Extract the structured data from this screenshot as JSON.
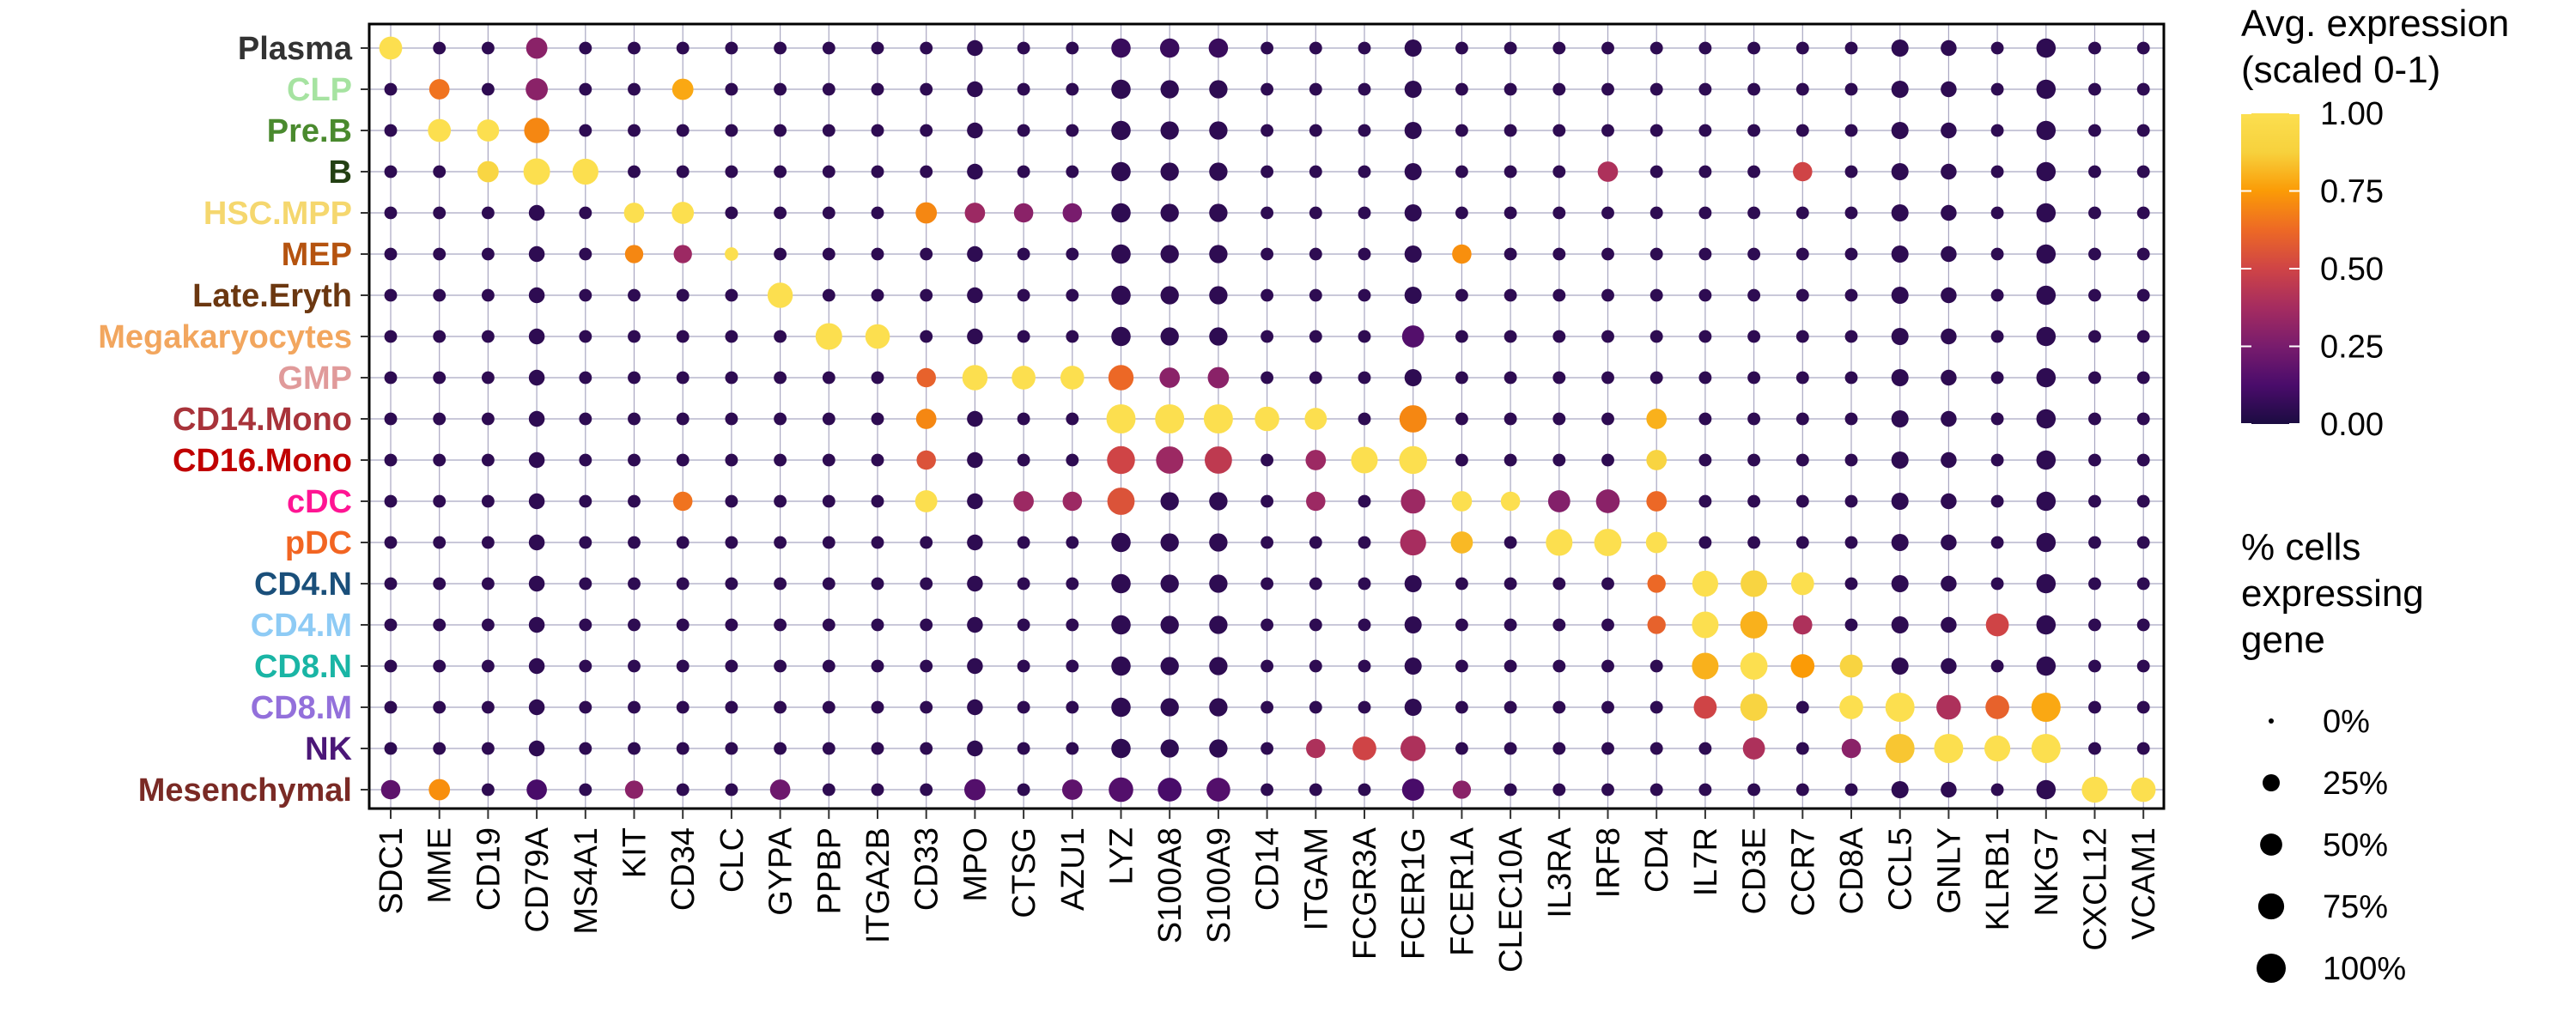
{
  "chart_data": {
    "type": "dot",
    "genes": [
      "SDC1",
      "MME",
      "CD19",
      "CD79A",
      "MS4A1",
      "KIT",
      "CD34",
      "CLC",
      "GYPA",
      "PPBP",
      "ITGA2B",
      "CD33",
      "MPO",
      "CTSG",
      "AZU1",
      "LYZ",
      "S100A8",
      "S100A9",
      "CD14",
      "ITGAM",
      "FCGR3A",
      "FCER1G",
      "FCER1A",
      "CLEC10A",
      "IL3RA",
      "IRF8",
      "CD4",
      "IL7R",
      "CD3E",
      "CCR7",
      "CD8A",
      "CCL5",
      "GNLY",
      "KLRB1",
      "NKG7",
      "CXCL12",
      "VCAM1"
    ],
    "cell_types": [
      {
        "name": "Plasma",
        "color": "#333333"
      },
      {
        "name": "CLP",
        "color": "#a6e3a1"
      },
      {
        "name": "Pre.B",
        "color": "#4a8a2e"
      },
      {
        "name": "B",
        "color": "#234013"
      },
      {
        "name": "HSC.MPP",
        "color": "#f5d76e"
      },
      {
        "name": "MEP",
        "color": "#b5530f"
      },
      {
        "name": "Late.Eryth",
        "color": "#6b3710"
      },
      {
        "name": "Megakaryocytes",
        "color": "#f2a65e"
      },
      {
        "name": "GMP",
        "color": "#e09a9a"
      },
      {
        "name": "CD14.Mono",
        "color": "#a8333a"
      },
      {
        "name": "CD16.Mono",
        "color": "#c00000"
      },
      {
        "name": "cDC",
        "color": "#ff1493"
      },
      {
        "name": "pDC",
        "color": "#f26522"
      },
      {
        "name": "CD4.N",
        "color": "#1a4f7a"
      },
      {
        "name": "CD4.M",
        "color": "#8ecbf5"
      },
      {
        "name": "CD8.N",
        "color": "#1ab5a5"
      },
      {
        "name": "CD8.M",
        "color": "#9370db"
      },
      {
        "name": "NK",
        "color": "#4b1778"
      },
      {
        "name": "Mesenchymal",
        "color": "#7a2a25"
      }
    ],
    "highlights": [
      {
        "cell": "Plasma",
        "gene": "SDC1",
        "expr": 1.0,
        "pct": 55
      },
      {
        "cell": "Plasma",
        "gene": "CD79A",
        "expr": 0.3,
        "pct": 45
      },
      {
        "cell": "Plasma",
        "gene": "LYZ",
        "expr": 0.08,
        "pct": 35
      },
      {
        "cell": "Plasma",
        "gene": "S100A8",
        "expr": 0.08,
        "pct": 35
      },
      {
        "cell": "Plasma",
        "gene": "S100A9",
        "expr": 0.08,
        "pct": 35
      },
      {
        "cell": "CLP",
        "gene": "MME",
        "expr": 0.65,
        "pct": 40
      },
      {
        "cell": "CLP",
        "gene": "CD79A",
        "expr": 0.3,
        "pct": 50
      },
      {
        "cell": "CLP",
        "gene": "CD34",
        "expr": 0.78,
        "pct": 45
      },
      {
        "cell": "Pre.B",
        "gene": "MME",
        "expr": 1.0,
        "pct": 55
      },
      {
        "cell": "Pre.B",
        "gene": "CD19",
        "expr": 1.0,
        "pct": 50
      },
      {
        "cell": "Pre.B",
        "gene": "CD79A",
        "expr": 0.7,
        "pct": 70
      },
      {
        "cell": "B",
        "gene": "CD19",
        "expr": 0.92,
        "pct": 45
      },
      {
        "cell": "B",
        "gene": "CD79A",
        "expr": 1.0,
        "pct": 80
      },
      {
        "cell": "B",
        "gene": "MS4A1",
        "expr": 1.0,
        "pct": 75
      },
      {
        "cell": "B",
        "gene": "IRF8",
        "expr": 0.4,
        "pct": 40
      },
      {
        "cell": "B",
        "gene": "CCR7",
        "expr": 0.5,
        "pct": 35
      },
      {
        "cell": "HSC.MPP",
        "gene": "KIT",
        "expr": 1.0,
        "pct": 40
      },
      {
        "cell": "HSC.MPP",
        "gene": "CD34",
        "expr": 1.0,
        "pct": 50
      },
      {
        "cell": "HSC.MPP",
        "gene": "CD33",
        "expr": 0.7,
        "pct": 45
      },
      {
        "cell": "HSC.MPP",
        "gene": "MPO",
        "expr": 0.35,
        "pct": 40
      },
      {
        "cell": "HSC.MPP",
        "gene": "CTSG",
        "expr": 0.3,
        "pct": 35
      },
      {
        "cell": "HSC.MPP",
        "gene": "AZU1",
        "expr": 0.25,
        "pct": 35
      },
      {
        "cell": "MEP",
        "gene": "KIT",
        "expr": 0.7,
        "pct": 30
      },
      {
        "cell": "MEP",
        "gene": "CD34",
        "expr": 0.35,
        "pct": 30
      },
      {
        "cell": "MEP",
        "gene": "CLC",
        "expr": 1.0,
        "pct": 12
      },
      {
        "cell": "MEP",
        "gene": "FCER1A",
        "expr": 0.72,
        "pct": 35
      },
      {
        "cell": "Late.Eryth",
        "gene": "GYPA",
        "expr": 1.0,
        "pct": 70
      },
      {
        "cell": "Megakaryocytes",
        "gene": "PPBP",
        "expr": 1.0,
        "pct": 80
      },
      {
        "cell": "Megakaryocytes",
        "gene": "ITGA2B",
        "expr": 1.0,
        "pct": 65
      },
      {
        "cell": "Megakaryocytes",
        "gene": "FCER1G",
        "expr": 0.15,
        "pct": 50
      },
      {
        "cell": "GMP",
        "gene": "CD33",
        "expr": 0.6,
        "pct": 35
      },
      {
        "cell": "GMP",
        "gene": "MPO",
        "expr": 1.0,
        "pct": 70
      },
      {
        "cell": "GMP",
        "gene": "CTSG",
        "expr": 1.0,
        "pct": 60
      },
      {
        "cell": "GMP",
        "gene": "AZU1",
        "expr": 1.0,
        "pct": 60
      },
      {
        "cell": "GMP",
        "gene": "LYZ",
        "expr": 0.62,
        "pct": 70
      },
      {
        "cell": "GMP",
        "gene": "S100A8",
        "expr": 0.3,
        "pct": 40
      },
      {
        "cell": "GMP",
        "gene": "S100A9",
        "expr": 0.3,
        "pct": 45
      },
      {
        "cell": "CD14.Mono",
        "gene": "CD33",
        "expr": 0.7,
        "pct": 40
      },
      {
        "cell": "CD14.Mono",
        "gene": "LYZ",
        "expr": 1.0,
        "pct": 100
      },
      {
        "cell": "CD14.Mono",
        "gene": "S100A8",
        "expr": 1.0,
        "pct": 100
      },
      {
        "cell": "CD14.Mono",
        "gene": "S100A9",
        "expr": 1.0,
        "pct": 100
      },
      {
        "cell": "CD14.Mono",
        "gene": "CD14",
        "expr": 1.0,
        "pct": 65
      },
      {
        "cell": "CD14.Mono",
        "gene": "ITGAM",
        "expr": 1.0,
        "pct": 50
      },
      {
        "cell": "CD14.Mono",
        "gene": "FCER1G",
        "expr": 0.7,
        "pct": 85
      },
      {
        "cell": "CD14.Mono",
        "gene": "CD4",
        "expr": 0.8,
        "pct": 40
      },
      {
        "cell": "CD16.Mono",
        "gene": "CD33",
        "expr": 0.55,
        "pct": 35
      },
      {
        "cell": "CD16.Mono",
        "gene": "LYZ",
        "expr": 0.5,
        "pct": 90
      },
      {
        "cell": "CD16.Mono",
        "gene": "S100A8",
        "expr": 0.35,
        "pct": 85
      },
      {
        "cell": "CD16.Mono",
        "gene": "S100A9",
        "expr": 0.45,
        "pct": 85
      },
      {
        "cell": "CD16.Mono",
        "gene": "ITGAM",
        "expr": 0.35,
        "pct": 40
      },
      {
        "cell": "CD16.Mono",
        "gene": "FCGR3A",
        "expr": 1.0,
        "pct": 80
      },
      {
        "cell": "CD16.Mono",
        "gene": "FCER1G",
        "expr": 1.0,
        "pct": 90
      },
      {
        "cell": "CD16.Mono",
        "gene": "CD4",
        "expr": 0.9,
        "pct": 40
      },
      {
        "cell": "cDC",
        "gene": "CD33",
        "expr": 1.0,
        "pct": 50
      },
      {
        "cell": "cDC",
        "gene": "CD34",
        "expr": 0.65,
        "pct": 35
      },
      {
        "cell": "cDC",
        "gene": "CTSG",
        "expr": 0.35,
        "pct": 40
      },
      {
        "cell": "cDC",
        "gene": "AZU1",
        "expr": 0.35,
        "pct": 35
      },
      {
        "cell": "cDC",
        "gene": "LYZ",
        "expr": 0.55,
        "pct": 85
      },
      {
        "cell": "cDC",
        "gene": "ITGAM",
        "expr": 0.35,
        "pct": 35
      },
      {
        "cell": "cDC",
        "gene": "FCER1G",
        "expr": 0.35,
        "pct": 65
      },
      {
        "cell": "cDC",
        "gene": "FCER1A",
        "expr": 1.0,
        "pct": 40
      },
      {
        "cell": "cDC",
        "gene": "CLEC10A",
        "expr": 1.0,
        "pct": 35
      },
      {
        "cell": "cDC",
        "gene": "IL3RA",
        "expr": 0.28,
        "pct": 50
      },
      {
        "cell": "cDC",
        "gene": "IRF8",
        "expr": 0.3,
        "pct": 60
      },
      {
        "cell": "cDC",
        "gene": "CD4",
        "expr": 0.62,
        "pct": 40
      },
      {
        "cell": "pDC",
        "gene": "FCER1G",
        "expr": 0.38,
        "pct": 75
      },
      {
        "cell": "pDC",
        "gene": "FCER1A",
        "expr": 0.82,
        "pct": 50
      },
      {
        "cell": "pDC",
        "gene": "IL3RA",
        "expr": 1.0,
        "pct": 80
      },
      {
        "cell": "pDC",
        "gene": "IRF8",
        "expr": 1.0,
        "pct": 85
      },
      {
        "cell": "pDC",
        "gene": "CD4",
        "expr": 1.0,
        "pct": 45
      },
      {
        "cell": "CD4.N",
        "gene": "CD4",
        "expr": 0.62,
        "pct": 30
      },
      {
        "cell": "CD4.N",
        "gene": "IL7R",
        "expr": 1.0,
        "pct": 75
      },
      {
        "cell": "CD4.N",
        "gene": "CD3E",
        "expr": 0.9,
        "pct": 80
      },
      {
        "cell": "CD4.N",
        "gene": "CCR7",
        "expr": 1.0,
        "pct": 55
      },
      {
        "cell": "CD4.M",
        "gene": "CD4",
        "expr": 0.6,
        "pct": 30
      },
      {
        "cell": "CD4.M",
        "gene": "IL7R",
        "expr": 1.0,
        "pct": 80
      },
      {
        "cell": "CD4.M",
        "gene": "CD3E",
        "expr": 0.8,
        "pct": 85
      },
      {
        "cell": "CD4.M",
        "gene": "CCR7",
        "expr": 0.4,
        "pct": 35
      },
      {
        "cell": "CD4.M",
        "gene": "KLRB1",
        "expr": 0.5,
        "pct": 55
      },
      {
        "cell": "CD8.N",
        "gene": "IL7R",
        "expr": 0.8,
        "pct": 80
      },
      {
        "cell": "CD8.N",
        "gene": "CD3E",
        "expr": 1.0,
        "pct": 85
      },
      {
        "cell": "CD8.N",
        "gene": "CCR7",
        "expr": 0.75,
        "pct": 60
      },
      {
        "cell": "CD8.N",
        "gene": "CD8A",
        "expr": 0.9,
        "pct": 55
      },
      {
        "cell": "CD8.M",
        "gene": "IL7R",
        "expr": 0.5,
        "pct": 55
      },
      {
        "cell": "CD8.M",
        "gene": "CD3E",
        "expr": 0.9,
        "pct": 85
      },
      {
        "cell": "CD8.M",
        "gene": "CD8A",
        "expr": 1.0,
        "pct": 60
      },
      {
        "cell": "CD8.M",
        "gene": "CCL5",
        "expr": 1.0,
        "pct": 100
      },
      {
        "cell": "CD8.M",
        "gene": "GNLY",
        "expr": 0.4,
        "pct": 65
      },
      {
        "cell": "CD8.M",
        "gene": "KLRB1",
        "expr": 0.6,
        "pct": 60
      },
      {
        "cell": "CD8.M",
        "gene": "NKG7",
        "expr": 0.78,
        "pct": 100
      },
      {
        "cell": "NK",
        "gene": "FCGR3A",
        "expr": 0.5,
        "pct": 60
      },
      {
        "cell": "NK",
        "gene": "FCER1G",
        "expr": 0.4,
        "pct": 70
      },
      {
        "cell": "NK",
        "gene": "ITGAM",
        "expr": 0.4,
        "pct": 35
      },
      {
        "cell": "NK",
        "gene": "CD3E",
        "expr": 0.4,
        "pct": 50
      },
      {
        "cell": "NK",
        "gene": "CD8A",
        "expr": 0.3,
        "pct": 35
      },
      {
        "cell": "NK",
        "gene": "CCL5",
        "expr": 0.85,
        "pct": 100
      },
      {
        "cell": "NK",
        "gene": "GNLY",
        "expr": 1.0,
        "pct": 100
      },
      {
        "cell": "NK",
        "gene": "KLRB1",
        "expr": 1.0,
        "pct": 75
      },
      {
        "cell": "NK",
        "gene": "NKG7",
        "expr": 1.0,
        "pct": 100
      },
      {
        "cell": "Mesenchymal",
        "gene": "SDC1",
        "expr": 0.18,
        "pct": 35
      },
      {
        "cell": "Mesenchymal",
        "gene": "MME",
        "expr": 0.72,
        "pct": 45
      },
      {
        "cell": "Mesenchymal",
        "gene": "CD79A",
        "expr": 0.12,
        "pct": 40
      },
      {
        "cell": "Mesenchymal",
        "gene": "KIT",
        "expr": 0.3,
        "pct": 30
      },
      {
        "cell": "Mesenchymal",
        "gene": "GYPA",
        "expr": 0.22,
        "pct": 40
      },
      {
        "cell": "Mesenchymal",
        "gene": "MPO",
        "expr": 0.15,
        "pct": 45
      },
      {
        "cell": "Mesenchymal",
        "gene": "AZU1",
        "expr": 0.18,
        "pct": 40
      },
      {
        "cell": "Mesenchymal",
        "gene": "LYZ",
        "expr": 0.15,
        "pct": 65
      },
      {
        "cell": "Mesenchymal",
        "gene": "S100A8",
        "expr": 0.12,
        "pct": 60
      },
      {
        "cell": "Mesenchymal",
        "gene": "S100A9",
        "expr": 0.15,
        "pct": 60
      },
      {
        "cell": "Mesenchymal",
        "gene": "FCER1G",
        "expr": 0.12,
        "pct": 50
      },
      {
        "cell": "Mesenchymal",
        "gene": "FCER1A",
        "expr": 0.3,
        "pct": 30
      },
      {
        "cell": "Mesenchymal",
        "gene": "CXCL12",
        "expr": 1.0,
        "pct": 75
      },
      {
        "cell": "Mesenchymal",
        "gene": "VCAM1",
        "expr": 1.0,
        "pct": 65
      }
    ],
    "background_pct_by_gene": {
      "LYZ": 35,
      "S100A8": 30,
      "S100A9": 30,
      "NKG7": 35,
      "CCL5": 25,
      "FCER1G": 25,
      "MPO": 20,
      "CD79A": 20,
      "GNLY": 20
    },
    "default_background": {
      "expr": 0.05,
      "pct": 10
    },
    "legend_color": {
      "title_line1": "Avg. expression",
      "title_line2": "(scaled 0-1)",
      "ticks": [
        "1.00",
        "0.75",
        "0.50",
        "0.25",
        "0.00"
      ],
      "tick_values": [
        1.0,
        0.75,
        0.5,
        0.25,
        0.0
      ],
      "palette": [
        "#1b0c41",
        "#4a0c6b",
        "#781c6d",
        "#a52c60",
        "#cf4446",
        "#ed6925",
        "#fb9b06",
        "#f7d13d",
        "#fcdf4f"
      ]
    },
    "legend_size": {
      "title_line1": "% cells",
      "title_line2": "expressing",
      "title_line3": "gene",
      "labels": [
        "0%",
        "25%",
        "50%",
        "75%",
        "100%"
      ],
      "values": [
        0,
        25,
        50,
        75,
        100
      ]
    },
    "grid": true,
    "legend_position": "right"
  }
}
